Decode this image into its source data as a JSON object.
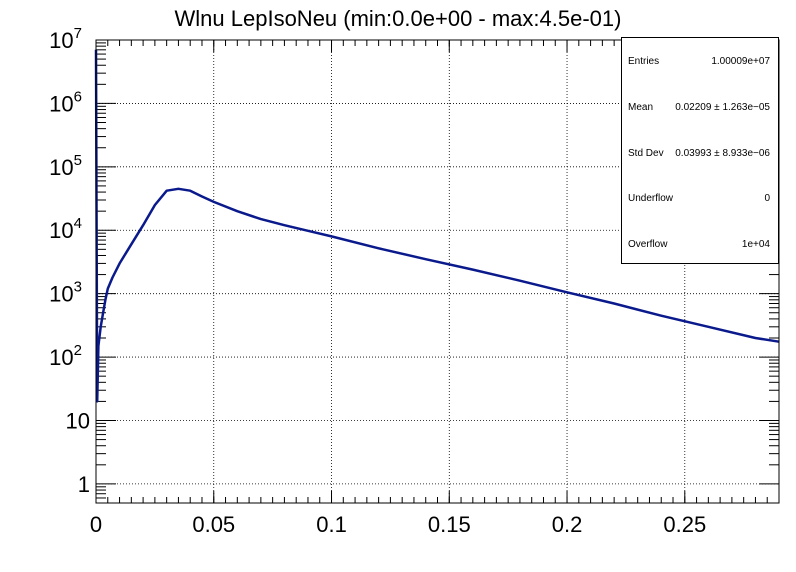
{
  "chart_data": {
    "type": "line",
    "title": "Wlnu LepIsoNeu (min:0.0e+00 - max:4.5e-01)",
    "xlabel": "",
    "ylabel": "",
    "xlim": [
      0,
      0.29
    ],
    "ylim": [
      0.5,
      10000000
    ],
    "yscale": "log",
    "grid": true,
    "legend": "none",
    "x_ticks": [
      "0",
      "0.05",
      "0.1",
      "0.15",
      "0.2",
      "0.25"
    ],
    "y_ticks": [
      "1",
      "10",
      "10^2",
      "10^3",
      "10^4",
      "10^5",
      "10^6",
      "10^7"
    ],
    "color": "#0a1a8c",
    "series": [
      {
        "x": [
          0,
          0.0005,
          0.001,
          0.002,
          0.003,
          0.004,
          0.005,
          0.007,
          0.01,
          0.015,
          0.02,
          0.025,
          0.03,
          0.035,
          0.04,
          0.045,
          0.05,
          0.06,
          0.07,
          0.08,
          0.09,
          0.1,
          0.12,
          0.14,
          0.16,
          0.18,
          0.2,
          0.22,
          0.24,
          0.26,
          0.28,
          0.29
        ],
        "y": [
          7000000,
          20,
          150,
          300,
          500,
          800,
          1200,
          1800,
          3000,
          6000,
          12000,
          25000,
          42000,
          45000,
          42000,
          34000,
          28000,
          20000,
          15000,
          12000,
          9800,
          8000,
          5200,
          3500,
          2400,
          1600,
          1050,
          700,
          450,
          300,
          200,
          175
        ]
      }
    ]
  },
  "stats": {
    "entries_label": "Entries",
    "entries_value": "1.00009e+07",
    "mean_label": "Mean",
    "mean_value": "0.02209 ± 1.263e−05",
    "stddev_label": "Std Dev",
    "stddev_value": "0.03993 ± 8.933e−06",
    "underflow_label": "Underflow",
    "underflow_value": "0",
    "overflow_label": "Overflow",
    "overflow_value": "1e+04"
  }
}
